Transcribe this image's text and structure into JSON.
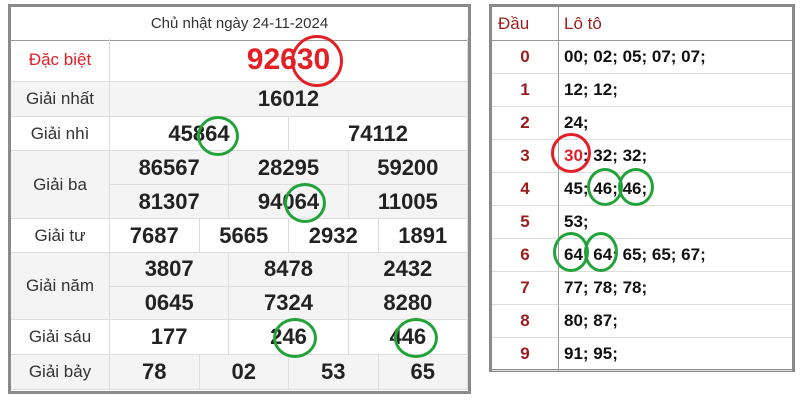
{
  "results": {
    "title": "Chủ nhật ngày 24-11-2024",
    "prizes": [
      {
        "label": "Đặc biệt",
        "values": [
          "92630"
        ]
      },
      {
        "label": "Giải nhất",
        "values": [
          "16012"
        ]
      },
      {
        "label": "Giải nhì",
        "values": [
          "45864",
          "74112"
        ]
      },
      {
        "label": "Giải ba",
        "values": [
          "86567",
          "28295",
          "59200",
          "81307",
          "94064",
          "11005"
        ]
      },
      {
        "label": "Giải tư",
        "values": [
          "7687",
          "5665",
          "2932",
          "1891"
        ]
      },
      {
        "label": "Giải năm",
        "values": [
          "3807",
          "8478",
          "2432",
          "0645",
          "7324",
          "8280"
        ]
      },
      {
        "label": "Giải sáu",
        "values": [
          "177",
          "246",
          "446"
        ]
      },
      {
        "label": "Giải bảy",
        "values": [
          "78",
          "02",
          "53",
          "65"
        ]
      }
    ]
  },
  "loto": {
    "header": {
      "dau": "Đầu",
      "loto": "Lô tô"
    },
    "rows": [
      {
        "dau": "0",
        "loto": "00; 02; 05; 07; 07;"
      },
      {
        "dau": "1",
        "loto": "12; 12;"
      },
      {
        "dau": "2",
        "loto": "24;"
      },
      {
        "dau": "3",
        "loto_highlight": "30",
        "loto": "; 32; 32;"
      },
      {
        "dau": "4",
        "loto": "45; 46; 46;"
      },
      {
        "dau": "5",
        "loto": "53;"
      },
      {
        "dau": "6",
        "loto": "64; 64; 65; 65; 67;"
      },
      {
        "dau": "7",
        "loto": "77; 78; 78;"
      },
      {
        "dau": "8",
        "loto": "80; 87;"
      },
      {
        "dau": "9",
        "loto": "91; 95;"
      }
    ]
  },
  "colors": {
    "special": "#e41f26",
    "highlight_circle": "#22a33a",
    "dau": "#9b1c1c"
  }
}
